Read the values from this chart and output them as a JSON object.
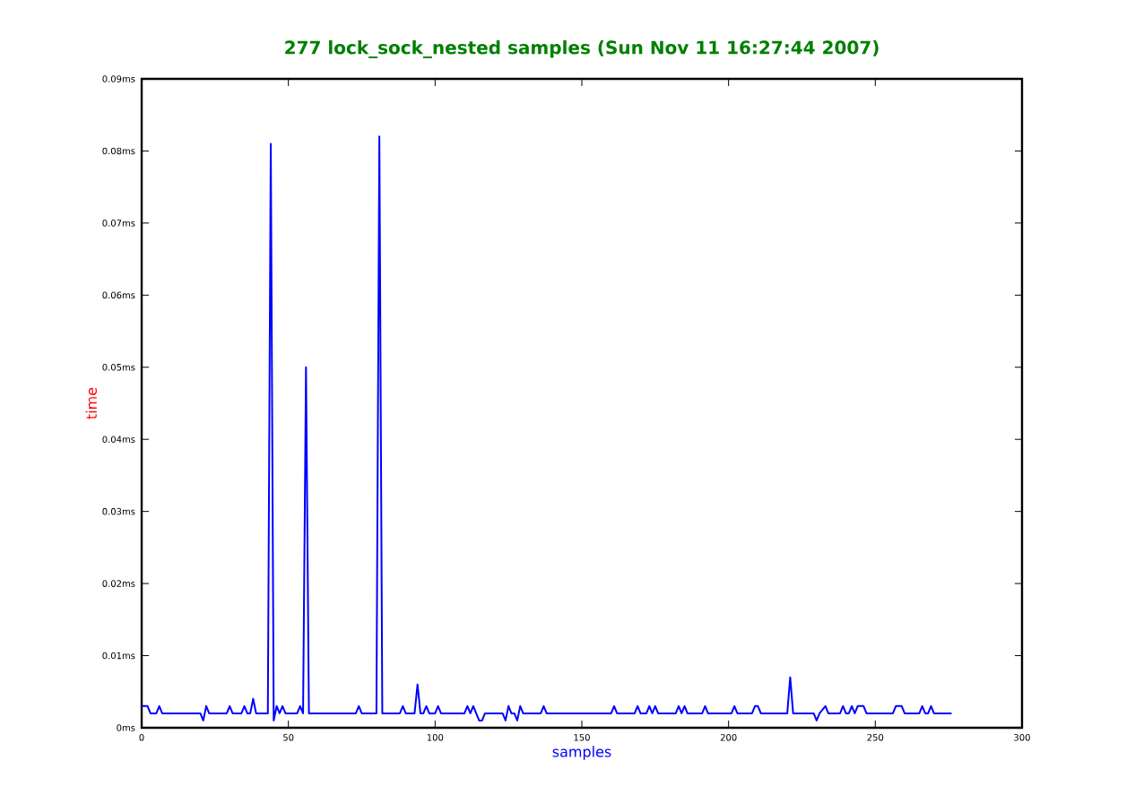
{
  "chart_data": {
    "type": "line",
    "title": "277 lock_sock_nested samples (Sun Nov 11 16:27:44 2007)",
    "xlabel": "samples",
    "ylabel": "time",
    "xlim": [
      0,
      300
    ],
    "xticks": [
      0,
      50,
      100,
      150,
      200,
      250,
      300
    ],
    "ylim": [
      0,
      0.09
    ],
    "yticks": [
      {
        "value": 0,
        "label": "0ms"
      },
      {
        "value": 0.01,
        "label": "0.01ms"
      },
      {
        "value": 0.02,
        "label": "0.02ms"
      },
      {
        "value": 0.03,
        "label": "0.03ms"
      },
      {
        "value": 0.04,
        "label": "0.04ms"
      },
      {
        "value": 0.05,
        "label": "0.05ms"
      },
      {
        "value": 0.06,
        "label": "0.06ms"
      },
      {
        "value": 0.07,
        "label": "0.07ms"
      },
      {
        "value": 0.08,
        "label": "0.08ms"
      },
      {
        "value": 0.09,
        "label": "0.09ms"
      }
    ],
    "line_style": "solid",
    "series": [
      {
        "color": "#0000ff",
        "x": [
          0,
          2,
          3,
          5,
          6,
          7,
          20,
          21,
          22,
          23,
          29,
          30,
          31,
          34,
          35,
          36,
          37,
          38,
          39,
          43,
          44,
          45,
          46,
          47,
          48,
          49,
          53,
          54,
          55,
          56,
          57,
          73,
          74,
          75,
          80,
          81,
          82,
          88,
          89,
          90,
          93,
          94,
          95,
          96,
          97,
          98,
          100,
          101,
          102,
          110,
          111,
          112,
          113,
          114,
          115,
          116,
          117,
          123,
          124,
          125,
          126,
          127,
          128,
          129,
          130,
          136,
          137,
          138,
          160,
          161,
          162,
          168,
          169,
          170,
          172,
          173,
          174,
          175,
          176,
          182,
          183,
          184,
          185,
          186,
          191,
          192,
          193,
          201,
          202,
          203,
          208,
          209,
          210,
          211,
          220,
          221,
          222,
          229,
          230,
          231,
          233,
          234,
          238,
          239,
          240,
          241,
          242,
          243,
          244,
          246,
          247,
          256,
          257,
          259,
          260,
          265,
          266,
          267,
          268,
          269,
          270,
          276
        ],
        "values": [
          0.003,
          0.003,
          0.002,
          0.002,
          0.003,
          0.002,
          0.002,
          0.001,
          0.003,
          0.002,
          0.002,
          0.003,
          0.002,
          0.002,
          0.003,
          0.002,
          0.002,
          0.004,
          0.002,
          0.002,
          0.081,
          0.001,
          0.003,
          0.002,
          0.003,
          0.002,
          0.002,
          0.003,
          0.002,
          0.05,
          0.002,
          0.002,
          0.003,
          0.002,
          0.002,
          0.082,
          0.002,
          0.002,
          0.003,
          0.002,
          0.002,
          0.006,
          0.002,
          0.002,
          0.003,
          0.002,
          0.002,
          0.003,
          0.002,
          0.002,
          0.003,
          0.002,
          0.003,
          0.002,
          0.001,
          0.001,
          0.002,
          0.002,
          0.001,
          0.003,
          0.002,
          0.002,
          0.001,
          0.003,
          0.002,
          0.002,
          0.003,
          0.002,
          0.002,
          0.003,
          0.002,
          0.002,
          0.003,
          0.002,
          0.002,
          0.003,
          0.002,
          0.003,
          0.002,
          0.002,
          0.003,
          0.002,
          0.003,
          0.002,
          0.002,
          0.003,
          0.002,
          0.002,
          0.003,
          0.002,
          0.002,
          0.003,
          0.003,
          0.002,
          0.002,
          0.007,
          0.002,
          0.002,
          0.001,
          0.002,
          0.003,
          0.002,
          0.002,
          0.003,
          0.002,
          0.002,
          0.003,
          0.002,
          0.003,
          0.003,
          0.002,
          0.002,
          0.003,
          0.003,
          0.002,
          0.002,
          0.003,
          0.002,
          0.002,
          0.003,
          0.002,
          0.002
        ]
      }
    ]
  }
}
